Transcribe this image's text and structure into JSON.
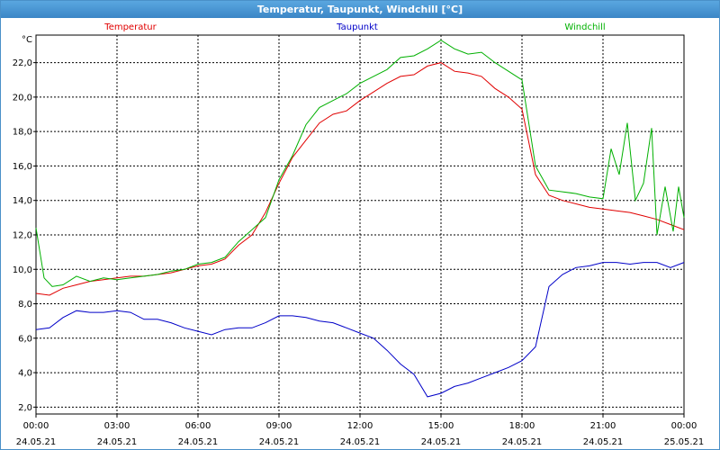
{
  "window": {
    "title": "Temperatur, Taupunkt, Windchill [°C]"
  },
  "colors": {
    "temperature": "#e00000",
    "dewpoint": "#0000c8",
    "windchill": "#00b000"
  },
  "chart_data": {
    "type": "line",
    "title": "Temperatur, Taupunkt, Windchill [°C]",
    "ylabel": "°C",
    "ylim": [
      1.6,
      23.6
    ],
    "xlim": [
      0,
      24
    ],
    "y_ticks": [
      2.0,
      4.0,
      6.0,
      8.0,
      10.0,
      12.0,
      14.0,
      16.0,
      18.0,
      20.0,
      22.0
    ],
    "y_tick_labels": [
      "2,0",
      "4,0",
      "6,0",
      "8,0",
      "10,0",
      "12,0",
      "14,0",
      "16,0",
      "18,0",
      "20,0",
      "22,0"
    ],
    "x_ticks": [
      0,
      3,
      6,
      9,
      12,
      15,
      18,
      21,
      24
    ],
    "x_tick_time": [
      "00:00",
      "03:00",
      "06:00",
      "09:00",
      "12:00",
      "15:00",
      "18:00",
      "21:00",
      "00:00"
    ],
    "x_tick_date": [
      "24.05.21",
      "24.05.21",
      "24.05.21",
      "24.05.21",
      "24.05.21",
      "24.05.21",
      "24.05.21",
      "24.05.21",
      "25.05.21"
    ],
    "grid": true,
    "legend_position": "top",
    "series": [
      {
        "name": "Temperatur",
        "color": "#e00000",
        "x": [
          0,
          0.5,
          1,
          1.5,
          2,
          2.5,
          3,
          3.5,
          4,
          4.5,
          5,
          5.5,
          6,
          6.5,
          7,
          7.5,
          8,
          8.5,
          9,
          9.5,
          10,
          10.5,
          11,
          11.5,
          12,
          12.5,
          13,
          13.5,
          14,
          14.5,
          15,
          15.5,
          16,
          16.5,
          17,
          17.5,
          18,
          18.5,
          19,
          19.5,
          20,
          20.5,
          21,
          21.5,
          22,
          22.5,
          23,
          23.5,
          24
        ],
        "y": [
          8.6,
          8.5,
          8.9,
          9.1,
          9.3,
          9.4,
          9.5,
          9.6,
          9.6,
          9.7,
          9.8,
          10.0,
          10.2,
          10.3,
          10.6,
          11.4,
          12.0,
          13.3,
          15.0,
          16.5,
          17.5,
          18.5,
          19.0,
          19.2,
          19.8,
          20.3,
          20.8,
          21.2,
          21.3,
          21.8,
          22.0,
          21.5,
          21.4,
          21.2,
          20.5,
          20.0,
          19.3,
          15.5,
          14.3,
          14.0,
          13.8,
          13.6,
          13.5,
          13.4,
          13.3,
          13.1,
          12.9,
          12.6,
          12.3
        ]
      },
      {
        "name": "Taupunkt",
        "color": "#0000c8",
        "x": [
          0,
          0.5,
          1,
          1.5,
          2,
          2.5,
          3,
          3.5,
          4,
          4.5,
          5,
          5.5,
          6,
          6.5,
          7,
          7.5,
          8,
          8.5,
          9,
          9.5,
          10,
          10.5,
          11,
          11.5,
          12,
          12.5,
          13,
          13.5,
          14,
          14.5,
          15,
          15.5,
          16,
          16.5,
          17,
          17.5,
          18,
          18.5,
          19,
          19.5,
          20,
          20.5,
          21,
          21.5,
          22,
          22.5,
          23,
          23.5,
          24
        ],
        "y": [
          6.5,
          6.6,
          7.2,
          7.6,
          7.5,
          7.5,
          7.6,
          7.5,
          7.1,
          7.1,
          6.9,
          6.6,
          6.4,
          6.2,
          6.5,
          6.6,
          6.6,
          6.9,
          7.3,
          7.3,
          7.2,
          7.0,
          6.9,
          6.6,
          6.3,
          6.0,
          5.3,
          4.5,
          3.9,
          2.6,
          2.8,
          3.2,
          3.4,
          3.7,
          4.0,
          4.3,
          4.7,
          5.5,
          9.0,
          9.7,
          10.1,
          10.2,
          10.4,
          10.4,
          10.3,
          10.4,
          10.4,
          10.1,
          10.4
        ]
      },
      {
        "name": "Windchill",
        "color": "#00b000",
        "x": [
          0,
          0.3,
          0.6,
          1,
          1.5,
          2,
          2.5,
          3,
          3.5,
          4,
          4.5,
          5,
          5.5,
          6,
          6.5,
          7,
          7.5,
          8,
          8.5,
          9,
          9.5,
          10,
          10.5,
          11,
          11.5,
          12,
          12.5,
          13,
          13.5,
          14,
          14.5,
          15,
          15.5,
          16,
          16.5,
          17,
          17.5,
          18,
          18.5,
          19,
          19.5,
          20,
          20.5,
          21,
          21.3,
          21.6,
          21.9,
          22.2,
          22.5,
          22.8,
          23,
          23.3,
          23.6,
          23.8,
          24
        ],
        "y": [
          12.4,
          9.5,
          9.0,
          9.1,
          9.6,
          9.3,
          9.5,
          9.4,
          9.5,
          9.6,
          9.7,
          9.9,
          10.0,
          10.3,
          10.4,
          10.7,
          11.6,
          12.3,
          13.0,
          15.2,
          16.6,
          18.4,
          19.4,
          19.8,
          20.2,
          20.8,
          21.2,
          21.6,
          22.3,
          22.4,
          22.8,
          23.3,
          22.8,
          22.5,
          22.6,
          22.0,
          21.5,
          21.0,
          16.0,
          14.6,
          14.5,
          14.4,
          14.2,
          14.1,
          17.0,
          15.5,
          18.5,
          14.0,
          15.0,
          18.2,
          12.0,
          14.8,
          12.2,
          14.8,
          13.0
        ]
      }
    ]
  }
}
